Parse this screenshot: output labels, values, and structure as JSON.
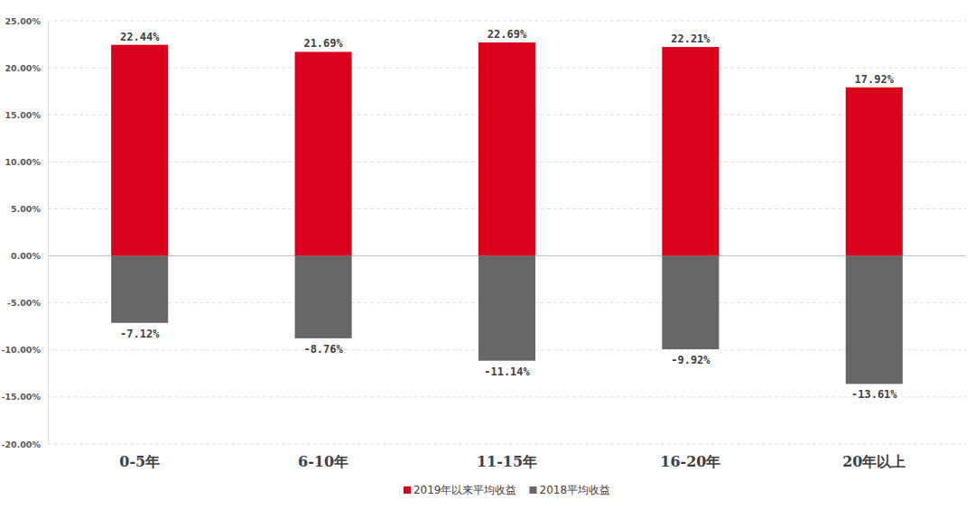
{
  "chart_data": {
    "type": "bar",
    "categories": [
      "0-5年",
      "6-10年",
      "11-15年",
      "16-20年",
      "20年以上"
    ],
    "series": [
      {
        "name": "2019年以来平均收益",
        "color": "#d9001b",
        "values": [
          22.44,
          21.69,
          22.69,
          22.21,
          17.92
        ],
        "value_labels": [
          "22.44%",
          "21.69%",
          "22.69%",
          "22.21%",
          "17.92%"
        ]
      },
      {
        "name": "2018平均收益",
        "color": "#666666",
        "values": [
          -7.12,
          -8.76,
          -11.14,
          -9.92,
          -13.61
        ],
        "value_labels": [
          "-7.12%",
          "-8.76%",
          "-11.14%",
          "-9.92%",
          "-13.61%"
        ]
      }
    ],
    "ylim": [
      -20,
      25
    ],
    "yticks": [
      {
        "value": -20,
        "label": "-20.00%"
      },
      {
        "value": -15,
        "label": "-15.00%"
      },
      {
        "value": -10,
        "label": "-10.00%"
      },
      {
        "value": -5,
        "label": "-5.00%"
      },
      {
        "value": 0,
        "label": "0.00%"
      },
      {
        "value": 5,
        "label": "5.00%"
      },
      {
        "value": 10,
        "label": "10.00%"
      },
      {
        "value": 15,
        "label": "15.00%"
      },
      {
        "value": 20,
        "label": "20.00%"
      },
      {
        "value": 25,
        "label": "25.00%"
      }
    ],
    "grid": true,
    "data_labels": true,
    "legend": "bottom"
  }
}
